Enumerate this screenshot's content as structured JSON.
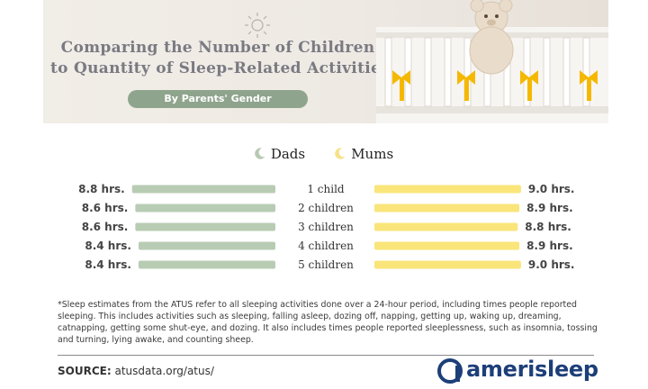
{
  "banner": {
    "title_line1": "Comparing the Number of Children",
    "title_line2": "to Quantity of Sleep-Related Activities*",
    "subtitle": "By Parents' Gender"
  },
  "legend": {
    "dads_label": "Dads",
    "mums_label": "Mums"
  },
  "colors": {
    "dads": "#b8ccb4",
    "mums": "#fae57a",
    "dads_icon": "#b7c9b2",
    "mums_icon": "#f6e287"
  },
  "chart_data": {
    "type": "bar",
    "orientation": "horizontal-diverging",
    "categories": [
      "1 child",
      "2 children",
      "3 children",
      "4 children",
      "5 children"
    ],
    "series": [
      {
        "name": "Dads",
        "values": [
          8.8,
          8.6,
          8.6,
          8.4,
          8.4
        ],
        "labels": [
          "8.8 hrs.",
          "8.6 hrs.",
          "8.6 hrs.",
          "8.4 hrs.",
          "8.4 hrs."
        ]
      },
      {
        "name": "Mums",
        "values": [
          9.0,
          8.9,
          8.8,
          8.9,
          9.0
        ],
        "labels": [
          "9.0 hrs.",
          "8.9 hrs.",
          "8.8 hrs.",
          "8.9 hrs.",
          "9.0 hrs."
        ]
      }
    ]
  },
  "footnote": "*Sleep estimates from the ATUS refer to all sleeping activities done over a 24-hour period, including times people reported sleeping. This includes activities such as sleeping, falling asleep, dozing off, napping, getting up, waking up, dreaming, catnapping, getting some shut-eye, and dozing. It also includes times people reported sleeplessness, such as insomnia, tossing and turning, lying awake, and counting sheep.",
  "source": {
    "label": "SOURCE:",
    "url": "atusdata.org/atus/"
  },
  "brand": {
    "name": "amerisleep",
    "icon": "amerisleep-logo-icon"
  }
}
